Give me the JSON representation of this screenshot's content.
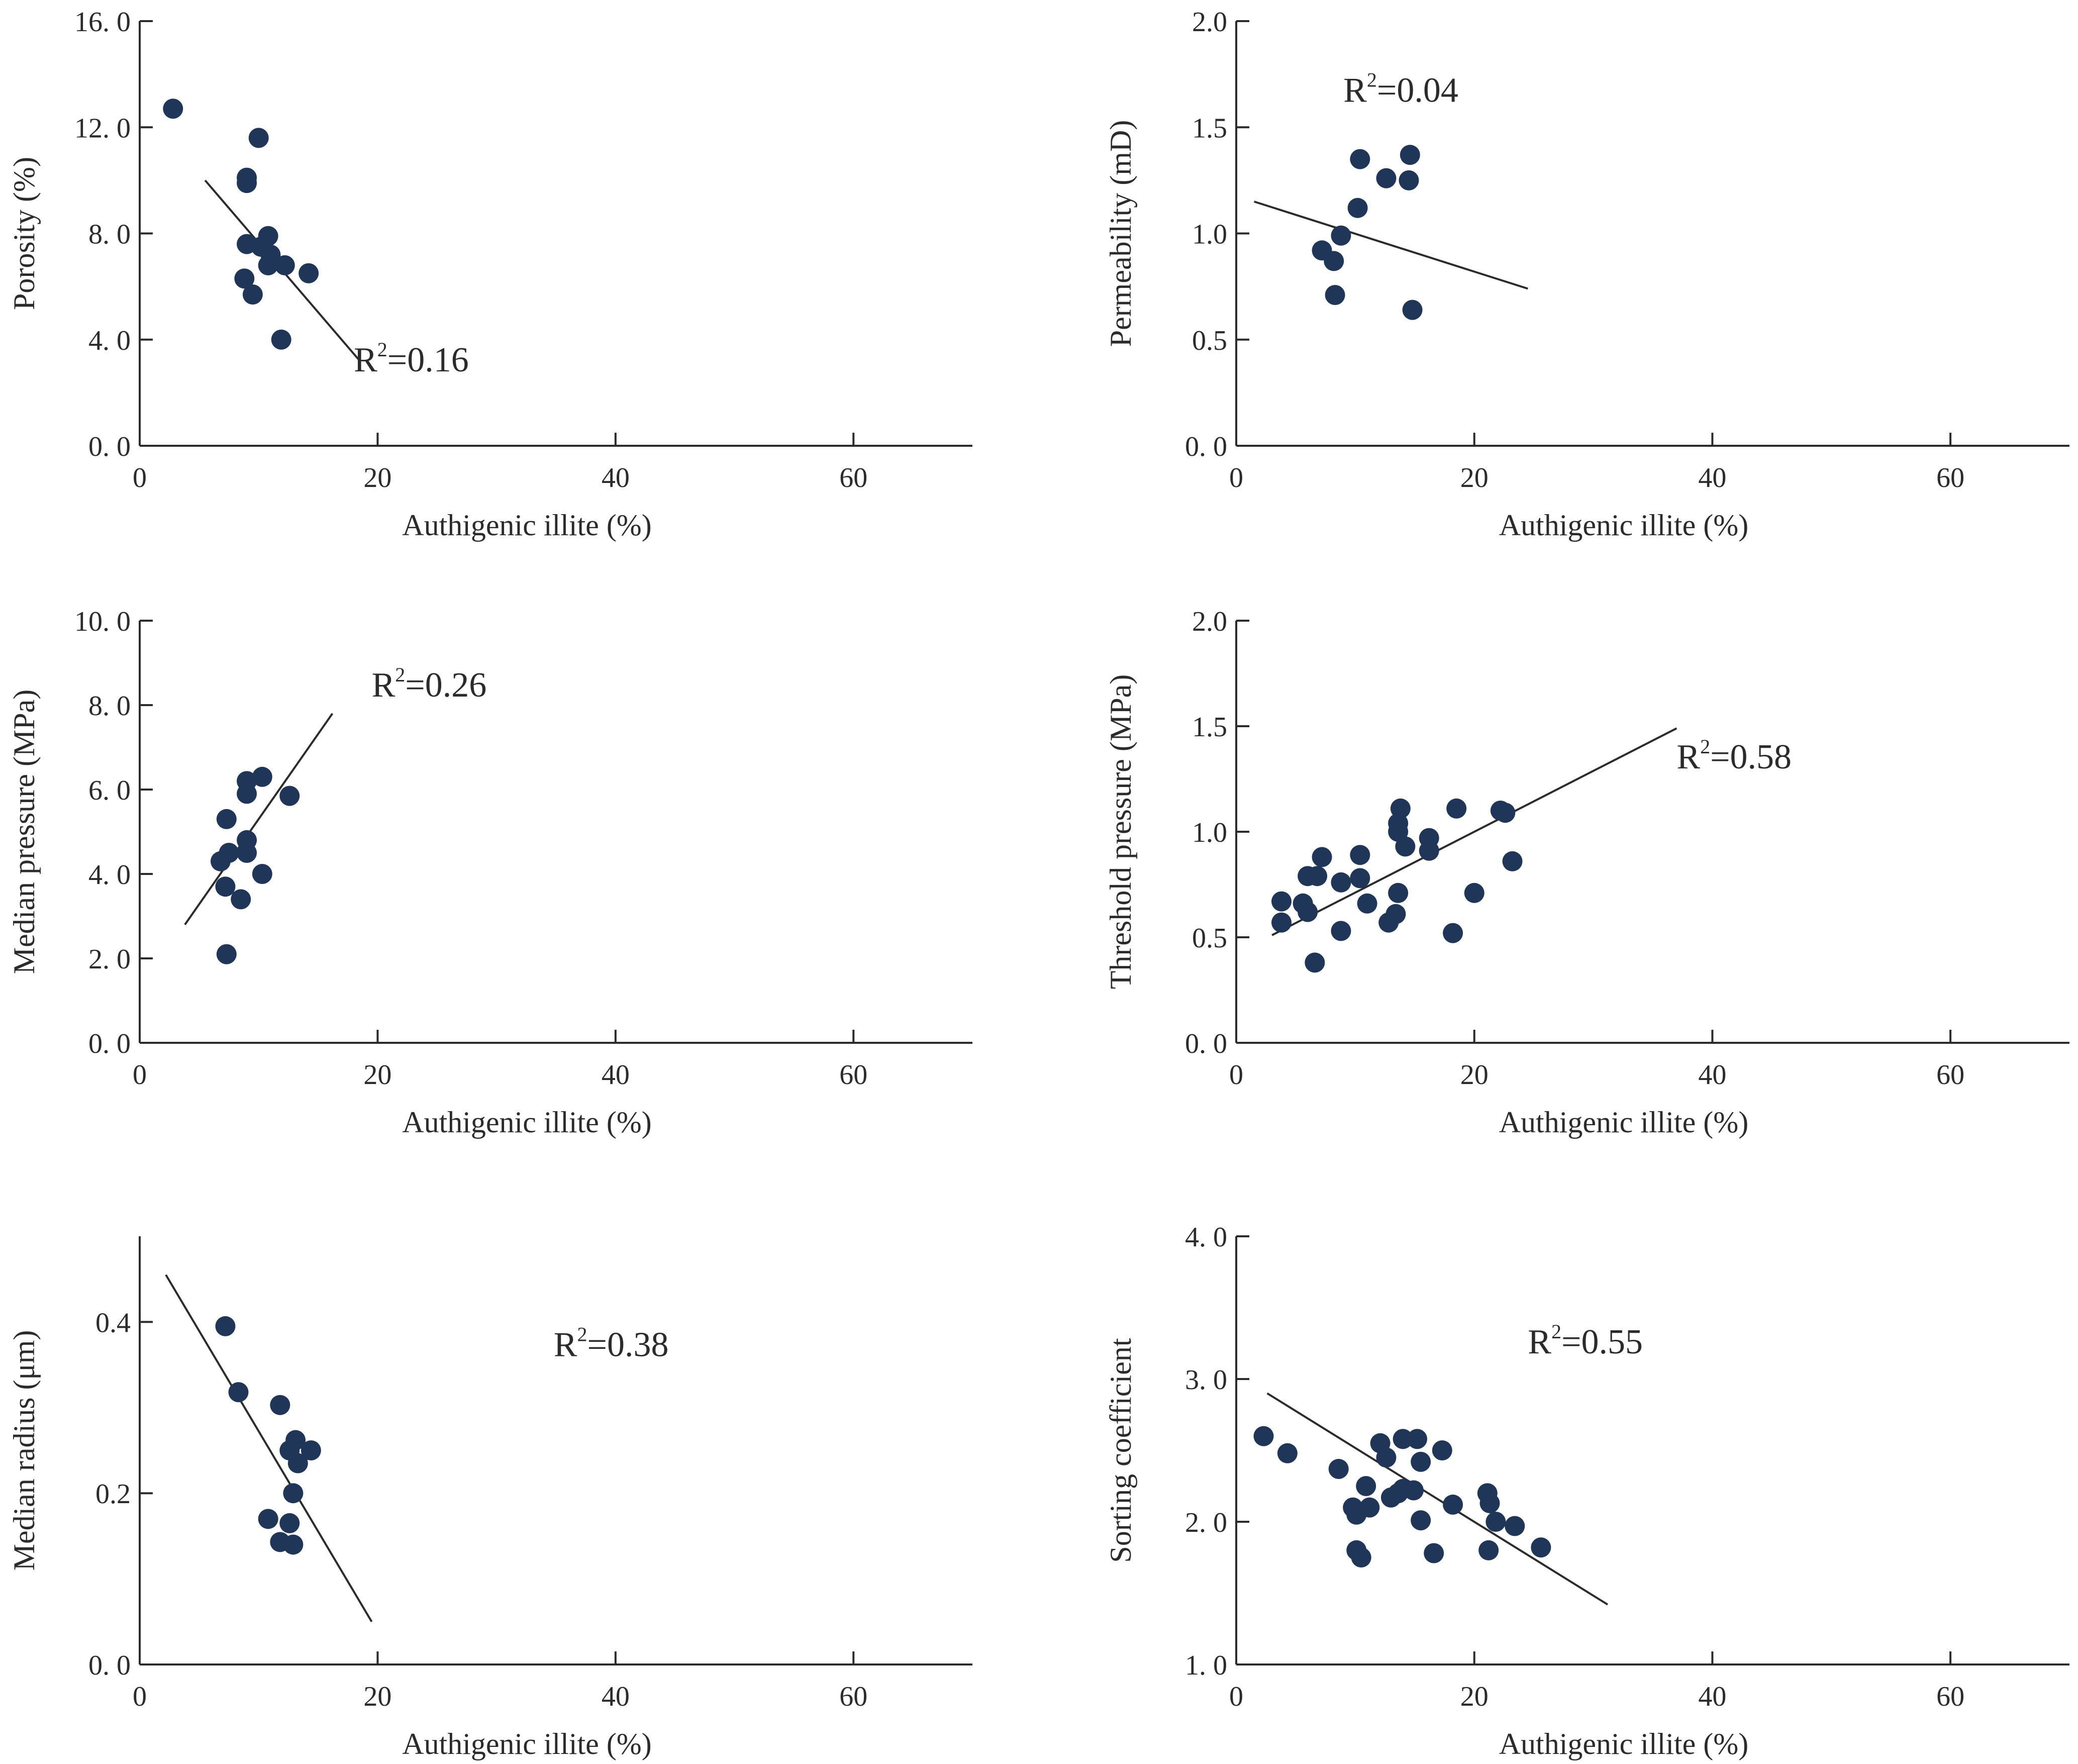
{
  "chart_data": [
    {
      "type": "scatter",
      "id": "porosity",
      "xlabel": "Authigenic illite (%)",
      "ylabel": "Porosity (%)",
      "xlim": [
        0,
        70
      ],
      "ylim": [
        0,
        16
      ],
      "xticks": [
        0,
        20,
        40,
        60
      ],
      "xtick_labels": [
        "0",
        "20",
        "40",
        "60"
      ],
      "yticks": [
        0,
        4,
        8,
        12,
        16
      ],
      "ytick_labels": [
        "0. 0",
        "4. 0",
        "8. 0",
        "12. 0",
        "16. 0"
      ],
      "annotation": {
        "base": "R",
        "sup": "2",
        "rest": "=0.16",
        "ax": 18,
        "ay": 2.8
      },
      "trendline": [
        [
          5.5,
          10.0
        ],
        [
          18.5,
          3.2
        ]
      ],
      "points": [
        [
          2.8,
          12.7
        ],
        [
          10.0,
          11.6
        ],
        [
          9.0,
          10.1
        ],
        [
          9.0,
          9.9
        ],
        [
          9.0,
          7.6
        ],
        [
          10.8,
          7.9
        ],
        [
          10.2,
          7.5
        ],
        [
          11.0,
          7.2
        ],
        [
          10.8,
          6.8
        ],
        [
          12.2,
          6.8
        ],
        [
          14.2,
          6.5
        ],
        [
          8.8,
          6.3
        ],
        [
          9.5,
          5.7
        ],
        [
          11.9,
          4.0
        ]
      ]
    },
    {
      "type": "scatter",
      "id": "permeability",
      "xlabel": "Authigenic illite (%)",
      "ylabel": "Permeability (mD)",
      "xlim": [
        0,
        70
      ],
      "ylim": [
        0,
        2
      ],
      "xticks": [
        0,
        20,
        40,
        60
      ],
      "xtick_labels": [
        "0",
        "20",
        "40",
        "60"
      ],
      "yticks": [
        0,
        0.5,
        1.0,
        1.5,
        2.0
      ],
      "ytick_labels": [
        "0. 0",
        "0.5",
        "1.0",
        "1.5",
        "2.0"
      ],
      "annotation": {
        "base": "R",
        "sup": "2",
        "rest": "=0.04",
        "ax": 9,
        "ay": 1.62
      },
      "trendline": [
        [
          1.5,
          1.15
        ],
        [
          24.5,
          0.74
        ]
      ],
      "points": [
        [
          10.4,
          1.35
        ],
        [
          14.6,
          1.37
        ],
        [
          12.6,
          1.26
        ],
        [
          14.5,
          1.25
        ],
        [
          10.2,
          1.12
        ],
        [
          8.8,
          0.99
        ],
        [
          7.2,
          0.92
        ],
        [
          8.2,
          0.87
        ],
        [
          8.3,
          0.71
        ],
        [
          14.8,
          0.64
        ]
      ]
    },
    {
      "type": "scatter",
      "id": "median-pressure",
      "xlabel": "Authigenic illite (%)",
      "ylabel": "Median pressure (MPa)",
      "xlim": [
        0,
        70
      ],
      "ylim": [
        0,
        10
      ],
      "xticks": [
        0,
        20,
        40,
        60
      ],
      "xtick_labels": [
        "0",
        "20",
        "40",
        "60"
      ],
      "yticks": [
        0,
        2,
        4,
        6,
        8,
        10
      ],
      "ytick_labels": [
        "0. 0",
        "2. 0",
        "4. 0",
        "6. 0",
        "8. 0",
        "10. 0"
      ],
      "annotation": {
        "base": "R",
        "sup": "2",
        "rest": "=0.26",
        "ax": 19.5,
        "ay": 8.2
      },
      "trendline": [
        [
          3.8,
          2.8
        ],
        [
          16.2,
          7.8
        ]
      ],
      "points": [
        [
          10.3,
          6.3
        ],
        [
          9.0,
          6.2
        ],
        [
          9.0,
          5.9
        ],
        [
          12.6,
          5.85
        ],
        [
          7.3,
          5.3
        ],
        [
          9.0,
          4.8
        ],
        [
          7.5,
          4.5
        ],
        [
          9.0,
          4.5
        ],
        [
          6.8,
          4.3
        ],
        [
          10.3,
          4.0
        ],
        [
          7.2,
          3.7
        ],
        [
          8.5,
          3.4
        ],
        [
          7.3,
          2.1
        ]
      ]
    },
    {
      "type": "scatter",
      "id": "threshold-pressure",
      "xlabel": "Authigenic illite (%)",
      "ylabel": "Threshold pressure  (MPa)",
      "xlim": [
        0,
        70
      ],
      "ylim": [
        0,
        2
      ],
      "xticks": [
        0,
        20,
        40,
        60
      ],
      "xtick_labels": [
        "0",
        "20",
        "40",
        "60"
      ],
      "yticks": [
        0,
        0.5,
        1.0,
        1.5,
        2.0
      ],
      "ytick_labels": [
        "0. 0",
        "0.5",
        "1.0",
        "1.5",
        "2.0"
      ],
      "annotation": {
        "base": "R",
        "sup": "2",
        "rest": "=0.58",
        "ax": 37,
        "ay": 1.3
      },
      "trendline": [
        [
          3.0,
          0.51
        ],
        [
          37.0,
          1.49
        ]
      ],
      "points": [
        [
          13.8,
          1.11
        ],
        [
          18.5,
          1.11
        ],
        [
          22.2,
          1.1
        ],
        [
          22.6,
          1.09
        ],
        [
          13.6,
          1.04
        ],
        [
          13.6,
          1.0
        ],
        [
          16.2,
          0.97
        ],
        [
          14.2,
          0.93
        ],
        [
          16.2,
          0.91
        ],
        [
          10.4,
          0.89
        ],
        [
          7.2,
          0.88
        ],
        [
          23.2,
          0.86
        ],
        [
          6.0,
          0.79
        ],
        [
          6.8,
          0.79
        ],
        [
          10.4,
          0.78
        ],
        [
          8.8,
          0.76
        ],
        [
          20.0,
          0.71
        ],
        [
          13.6,
          0.71
        ],
        [
          3.8,
          0.67
        ],
        [
          5.6,
          0.66
        ],
        [
          11.0,
          0.66
        ],
        [
          6.0,
          0.62
        ],
        [
          13.4,
          0.61
        ],
        [
          3.8,
          0.57
        ],
        [
          12.8,
          0.57
        ],
        [
          8.8,
          0.53
        ],
        [
          18.2,
          0.52
        ],
        [
          6.6,
          0.38
        ]
      ]
    },
    {
      "type": "scatter",
      "id": "median-radius",
      "xlabel": "Authigenic illite (%)",
      "ylabel": "Median radius  (μm)",
      "xlim": [
        0,
        70
      ],
      "ylim": [
        0,
        0.5
      ],
      "xticks": [
        0,
        20,
        40,
        60
      ],
      "xtick_labels": [
        "0",
        "20",
        "40",
        "60"
      ],
      "yticks": [
        0,
        0.2,
        0.4
      ],
      "ytick_labels": [
        "0. 0",
        "0.2",
        "0.4"
      ],
      "annotation": {
        "base": "R",
        "sup": "2",
        "rest": "=0.38",
        "ax": 34.8,
        "ay": 0.36
      },
      "trendline": [
        [
          2.2,
          0.455
        ],
        [
          19.5,
          0.05
        ]
      ],
      "points": [
        [
          7.2,
          0.395
        ],
        [
          8.3,
          0.318
        ],
        [
          11.8,
          0.303
        ],
        [
          13.1,
          0.262
        ],
        [
          12.6,
          0.25
        ],
        [
          14.4,
          0.25
        ],
        [
          13.3,
          0.235
        ],
        [
          12.9,
          0.2
        ],
        [
          10.8,
          0.17
        ],
        [
          12.6,
          0.165
        ],
        [
          11.8,
          0.143
        ],
        [
          12.9,
          0.14
        ]
      ]
    },
    {
      "type": "scatter",
      "id": "sorting-coefficient",
      "xlabel": "Authigenic illite (%)",
      "ylabel": "Sorting coefficient",
      "xlim": [
        0,
        70
      ],
      "ylim": [
        1,
        4
      ],
      "xticks": [
        0,
        20,
        40,
        60
      ],
      "xtick_labels": [
        "0",
        "20",
        "40",
        "60"
      ],
      "yticks": [
        1,
        2,
        3,
        4
      ],
      "ytick_labels": [
        "1. 0",
        "2. 0",
        "3. 0",
        "4. 0"
      ],
      "annotation": {
        "base": "R",
        "sup": "2",
        "rest": "=0.55",
        "ax": 24.5,
        "ay": 3.18
      },
      "trendline": [
        [
          2.6,
          2.9
        ],
        [
          31.2,
          1.42
        ]
      ],
      "points": [
        [
          2.3,
          2.6
        ],
        [
          4.3,
          2.48
        ],
        [
          12.1,
          2.55
        ],
        [
          14.0,
          2.58
        ],
        [
          15.2,
          2.58
        ],
        [
          17.3,
          2.5
        ],
        [
          12.6,
          2.45
        ],
        [
          15.5,
          2.42
        ],
        [
          8.6,
          2.37
        ],
        [
          10.9,
          2.25
        ],
        [
          14.0,
          2.23
        ],
        [
          14.9,
          2.22
        ],
        [
          13.0,
          2.17
        ],
        [
          13.6,
          2.2
        ],
        [
          9.8,
          2.1
        ],
        [
          11.2,
          2.1
        ],
        [
          10.1,
          2.05
        ],
        [
          18.2,
          2.12
        ],
        [
          21.1,
          2.2
        ],
        [
          21.3,
          2.13
        ],
        [
          15.5,
          2.01
        ],
        [
          21.8,
          2.0
        ],
        [
          23.4,
          1.97
        ],
        [
          25.6,
          1.82
        ],
        [
          10.1,
          1.8
        ],
        [
          10.5,
          1.75
        ],
        [
          16.6,
          1.78
        ],
        [
          21.2,
          1.8
        ]
      ]
    }
  ]
}
